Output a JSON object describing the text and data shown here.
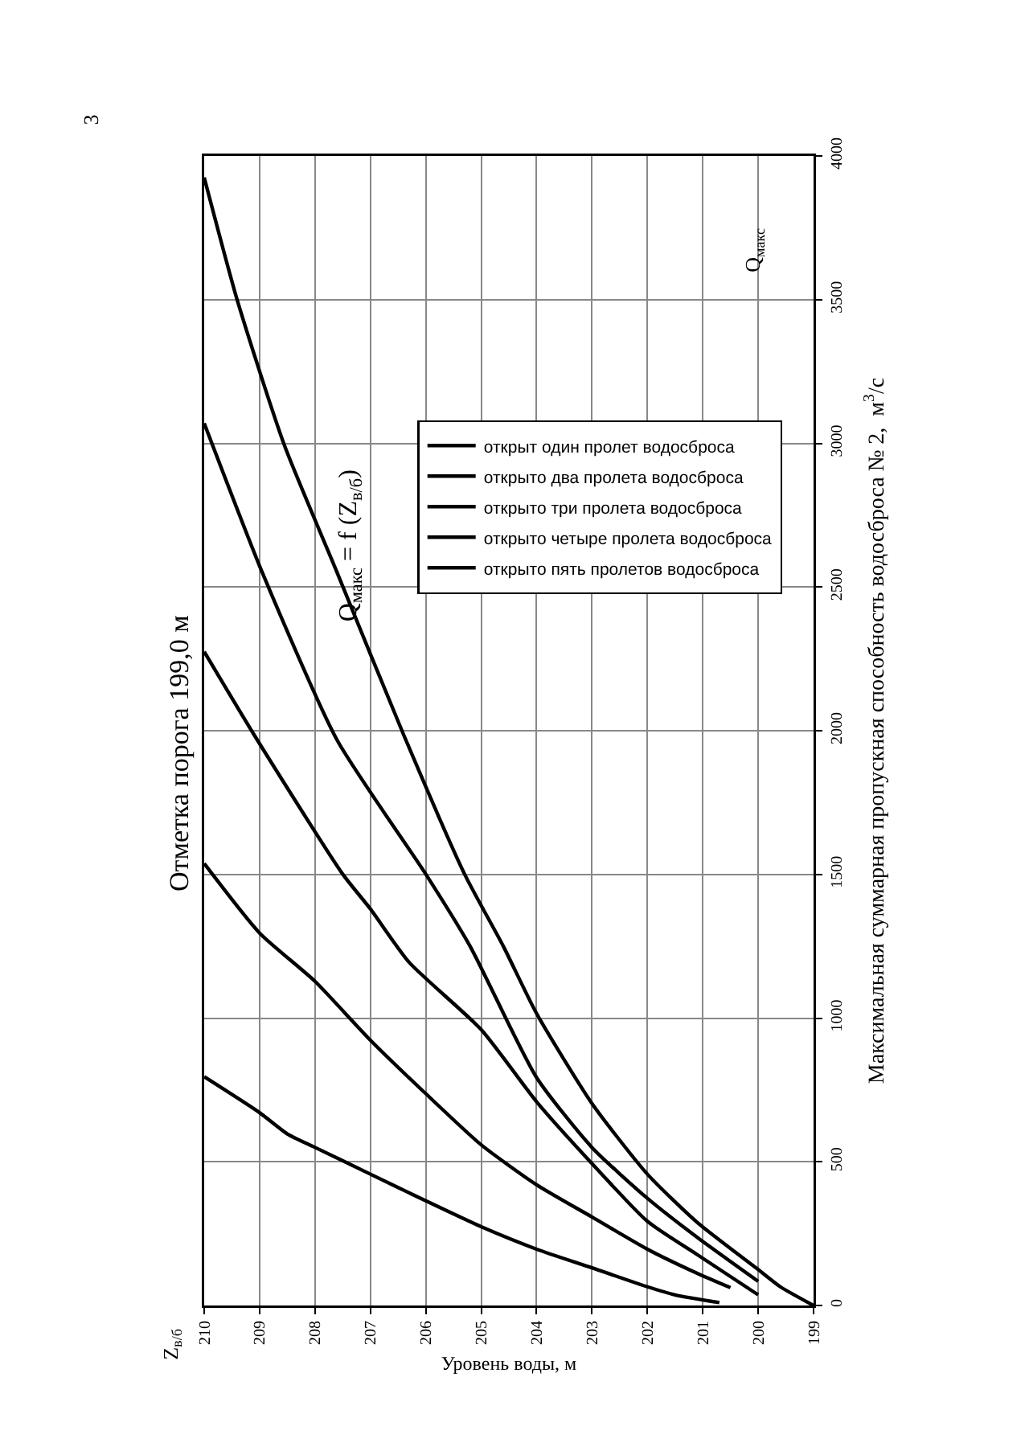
{
  "chart_data": {
    "type": "line",
    "title": "Отметка порога 199,0 м",
    "xlabel": "Уровень воды, м",
    "ylabel": "Максимальная суммарная пропускная способность водосброса № 2,  м$^{3}$/с",
    "annotations": [
      "Q$_{макс}$ = f (Z$_{в/б}$)",
      "Q$_{макс}$",
      "Z$_{в/б}$",
      "3"
    ],
    "xlim": [
      210,
      199
    ],
    "xticks": [
      210,
      209,
      208,
      207,
      206,
      205,
      204,
      203,
      202,
      201,
      200,
      199
    ],
    "ylim": [
      0,
      4000
    ],
    "yticks": [
      0,
      500,
      1000,
      1500,
      2000,
      2500,
      3000,
      3500,
      4000
    ],
    "grid": true,
    "legend": "right",
    "marker": "none",
    "line_style": "solid",
    "series": [
      {
        "name": "открыт один пролет водосброса",
        "color": "#000000",
        "x": [
          200.7,
          201.5,
          202.0,
          203.0,
          204.0,
          205.0,
          206.0,
          207.0,
          208.0,
          208.5,
          209.0,
          210.0
        ],
        "values": [
          10,
          37,
          65,
          131,
          196,
          274,
          364,
          457,
          550,
          597,
          671,
          796
        ]
      },
      {
        "name": "открыто два пролета водосброса",
        "color": "#000000",
        "x": [
          200.5,
          201.1,
          202.0,
          203.0,
          204.0,
          205.0,
          206.0,
          207.0,
          208.0,
          209.0,
          210.0
        ],
        "values": [
          62,
          112,
          196,
          308,
          420,
          559,
          737,
          923,
          1128,
          1296,
          1538
        ]
      },
      {
        "name": "открыто три пролета водосброса",
        "color": "#000000",
        "x": [
          200.0,
          201.1,
          202.0,
          203.0,
          204.0,
          205.0,
          206.3,
          207.0,
          207.5,
          209.1,
          210.0
        ],
        "values": [
          37,
          177,
          293,
          494,
          709,
          960,
          1194,
          1380,
          1501,
          1986,
          2275
        ]
      },
      {
        "name": "открыто четыре пролета водосброса",
        "color": "#000000",
        "x": [
          200.0,
          201.1,
          202.0,
          203.0,
          204.0,
          205.2,
          206.0,
          207.6,
          208.95,
          210.0
        ],
        "values": [
          84,
          237,
          373,
          550,
          793,
          1250,
          1501,
          1967,
          2550,
          3070
        ]
      },
      {
        "name": "открыто пять пролетов водосброса",
        "color": "#000000",
        "x": [
          199.0,
          199.6,
          200.0,
          201.1,
          202.0,
          203.0,
          204.0,
          204.6,
          205.3,
          206.4,
          207.6,
          208.55,
          209.4,
          210.0
        ],
        "values": [
          0,
          65,
          125,
          289,
          457,
          703,
          1016,
          1250,
          1501,
          1986,
          2550,
          2992,
          3496,
          3925
        ]
      }
    ]
  }
}
